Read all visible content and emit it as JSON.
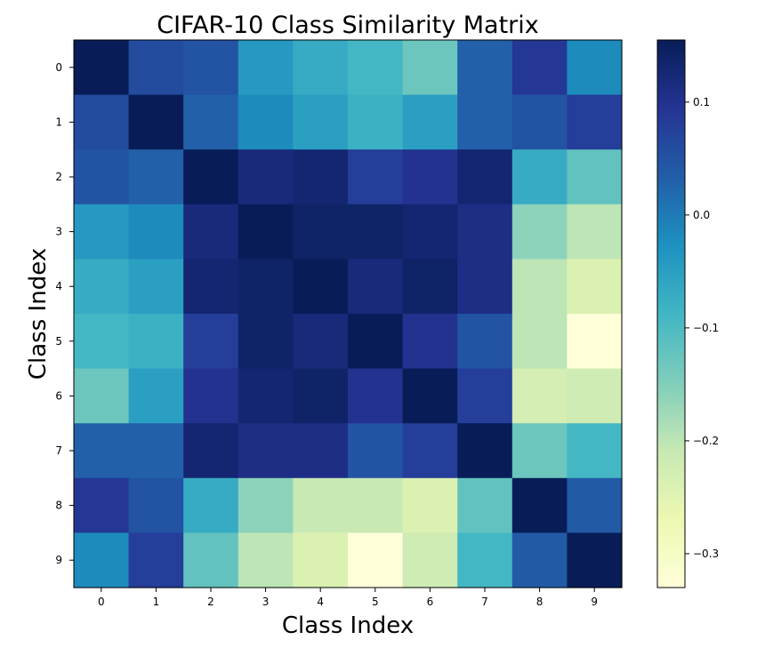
{
  "chart_data": {
    "type": "heatmap",
    "title": "CIFAR-10 Class Similarity Matrix",
    "xlabel": "Class Index",
    "ylabel": "Class Index",
    "x_ticks": [
      "0",
      "1",
      "2",
      "3",
      "4",
      "5",
      "6",
      "7",
      "8",
      "9"
    ],
    "y_ticks": [
      "0",
      "1",
      "2",
      "3",
      "4",
      "5",
      "6",
      "7",
      "8",
      "9"
    ],
    "colormap": "YlGnBu",
    "vmin": -0.33,
    "vmax": 0.155,
    "colorbar_ticks": [
      {
        "value": 0.1,
        "label": "0.1"
      },
      {
        "value": 0.0,
        "label": "0.0"
      },
      {
        "value": -0.1,
        "label": "−0.1"
      },
      {
        "value": -0.2,
        "label": "−0.2"
      },
      {
        "value": -0.3,
        "label": "−0.3"
      }
    ],
    "values": [
      [
        0.155,
        0.06,
        0.05,
        -0.04,
        -0.07,
        -0.09,
        -0.13,
        0.03,
        0.09,
        -0.02
      ],
      [
        0.06,
        0.155,
        0.03,
        -0.02,
        -0.05,
        -0.08,
        -0.05,
        0.03,
        0.05,
        0.08
      ],
      [
        0.05,
        0.03,
        0.155,
        0.12,
        0.13,
        0.08,
        0.1,
        0.13,
        -0.07,
        -0.12
      ],
      [
        -0.04,
        -0.02,
        0.12,
        0.155,
        0.14,
        0.14,
        0.13,
        0.11,
        -0.16,
        -0.2
      ],
      [
        -0.07,
        -0.05,
        0.13,
        0.14,
        0.155,
        0.12,
        0.14,
        0.11,
        -0.2,
        -0.24
      ],
      [
        -0.09,
        -0.08,
        0.08,
        0.14,
        0.12,
        0.155,
        0.1,
        0.05,
        -0.2,
        -0.33
      ],
      [
        -0.13,
        -0.05,
        0.1,
        0.13,
        0.14,
        0.1,
        0.155,
        0.08,
        -0.23,
        -0.22
      ],
      [
        0.03,
        0.03,
        0.13,
        0.11,
        0.11,
        0.05,
        0.08,
        0.155,
        -0.13,
        -0.09
      ],
      [
        0.09,
        0.05,
        -0.07,
        -0.16,
        -0.21,
        -0.21,
        -0.24,
        -0.12,
        0.155,
        0.04
      ],
      [
        -0.02,
        0.08,
        -0.12,
        -0.2,
        -0.24,
        -0.33,
        -0.22,
        -0.09,
        0.04,
        0.155
      ]
    ]
  },
  "colors": {
    "ylgnbu": [
      "#ffffd9",
      "#edf8b1",
      "#c7e9b4",
      "#7fcdbb",
      "#41b6c4",
      "#1d91c0",
      "#225ea8",
      "#253494",
      "#081d58"
    ]
  }
}
